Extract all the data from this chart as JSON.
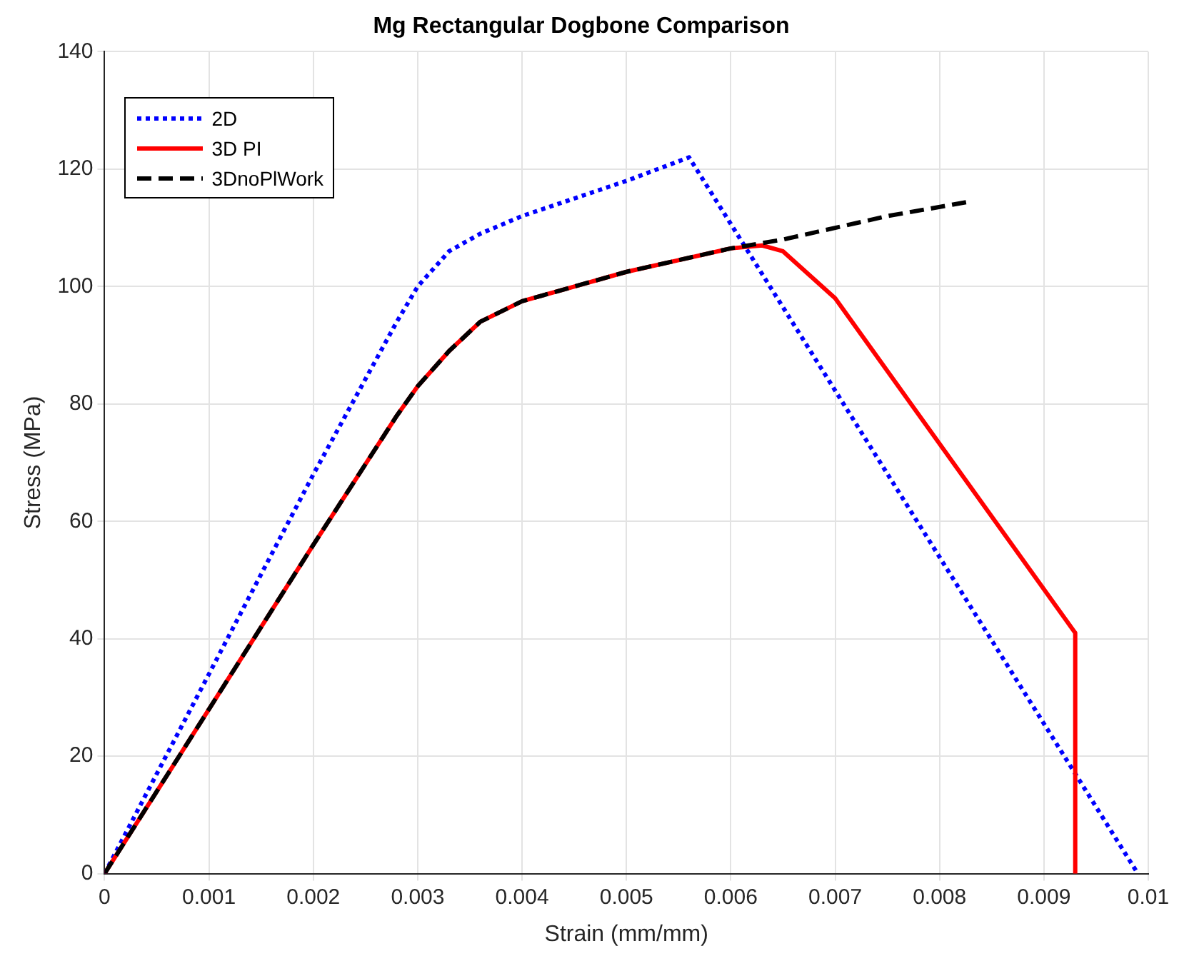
{
  "chart_data": {
    "type": "line",
    "title": "Mg Rectangular Dogbone Comparison",
    "xlabel": "Strain (mm/mm)",
    "ylabel": "Stress (MPa)",
    "xlim": [
      0,
      0.01
    ],
    "xticks": [
      0,
      0.001,
      0.002,
      0.003,
      0.004,
      0.005,
      0.006,
      0.007,
      0.008,
      0.009,
      0.01
    ],
    "ylim": [
      0,
      140
    ],
    "yticks": [
      0,
      20,
      40,
      60,
      80,
      100,
      120,
      140
    ],
    "grid": true,
    "legend": "top left",
    "marker": "none",
    "series": [
      {
        "name": "2D",
        "color": "#0000ff",
        "line_style": "dotted",
        "x": [
          0,
          0.001,
          0.002,
          0.0028,
          0.003,
          0.0033,
          0.0036,
          0.004,
          0.0045,
          0.005,
          0.0056,
          0.0099
        ],
        "values": [
          0,
          34,
          68,
          94,
          100,
          106,
          109,
          112,
          115,
          118,
          122,
          0
        ]
      },
      {
        "name": "3D PI",
        "color": "#ff0000",
        "line_style": "solid",
        "x": [
          0,
          0.001,
          0.002,
          0.0028,
          0.003,
          0.0033,
          0.0036,
          0.004,
          0.0045,
          0.005,
          0.0055,
          0.006,
          0.0063,
          0.0065,
          0.007,
          0.0093,
          0.0093
        ],
        "values": [
          0,
          28,
          56,
          78,
          83,
          89,
          94,
          97.5,
          100,
          102.5,
          104.5,
          106.5,
          107,
          106,
          98,
          41,
          0
        ]
      },
      {
        "name": "3DnoPlWork",
        "color": "#000000",
        "line_style": "dashed",
        "x": [
          0,
          0.001,
          0.002,
          0.0028,
          0.003,
          0.0033,
          0.0036,
          0.004,
          0.0045,
          0.005,
          0.0055,
          0.006,
          0.0065,
          0.007,
          0.0075,
          0.0083
        ],
        "values": [
          0,
          28,
          56,
          78,
          83,
          89,
          94,
          97.5,
          100,
          102.5,
          104.5,
          106.5,
          108,
          110,
          112,
          114.5
        ]
      }
    ]
  }
}
